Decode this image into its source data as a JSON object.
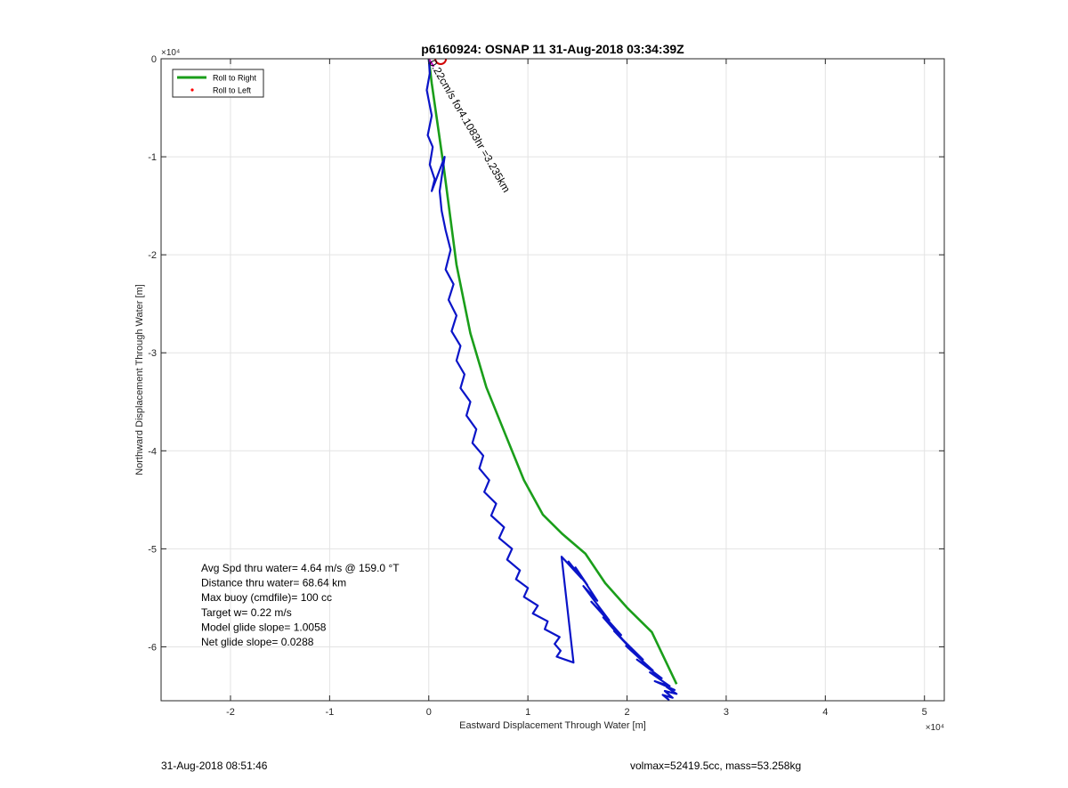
{
  "chart_data": {
    "type": "line",
    "title": "p6160924: OSNAP 11 31-Aug-2018 03:34:39Z",
    "xlabel": "Eastward Displacement Through Water [m]",
    "ylabel": "Northward Displacement Through Water [m]",
    "x_exponent_label": "×10⁴",
    "y_exponent_label": "×10⁴",
    "xlim": [
      -27000,
      52000
    ],
    "ylim": [
      -65500,
      0
    ],
    "x_ticks": [
      -20000,
      -10000,
      0,
      10000,
      20000,
      30000,
      40000,
      50000
    ],
    "x_tick_labels": [
      "-2",
      "-1",
      "0",
      "1",
      "2",
      "3",
      "4",
      "5"
    ],
    "y_ticks": [
      0,
      -10000,
      -20000,
      -30000,
      -40000,
      -50000,
      -60000
    ],
    "y_tick_labels": [
      "0",
      "-1",
      "-2",
      "-3",
      "-4",
      "-5",
      "-6"
    ],
    "grid": true,
    "legend_position": "top-left",
    "legend": [
      {
        "label": "Roll to Right",
        "color": "#1a9e1a",
        "marker": "line"
      },
      {
        "label": "Roll to Left",
        "color": "#ff0000",
        "marker": "dot"
      }
    ],
    "series": [
      {
        "name": "Roll to Right",
        "color": "#1a9e1a",
        "x": [
          0,
          300,
          1500,
          2800,
          4200,
          5800,
          7800,
          9600,
          11500,
          13500,
          15800,
          17800,
          20000,
          22500,
          25000
        ],
        "y": [
          0,
          -2500,
          -11000,
          -21000,
          -28000,
          -33500,
          -38500,
          -43000,
          -46500,
          -48500,
          -50500,
          -53500,
          -56000,
          -58500,
          -63800
        ]
      },
      {
        "color": "#0a14c8",
        "x": [
          0,
          100,
          -200,
          300,
          -100,
          400,
          100,
          600,
          300,
          1600,
          1100,
          1300,
          1700,
          2200,
          1700,
          2500,
          2000,
          2800,
          2300,
          3200,
          2800,
          3600,
          3200,
          4200,
          3800,
          4800,
          4400,
          5500,
          5100,
          6100,
          5600,
          6800,
          6300,
          7600,
          7100,
          8400,
          7900,
          9200,
          8800,
          10000,
          9600,
          11000,
          10500,
          12000,
          11700,
          13200,
          12700,
          13300,
          12900,
          14600,
          13400,
          15400,
          14100,
          16000,
          14800,
          17000,
          15600,
          18200,
          16400,
          19400,
          17600,
          20300,
          18700,
          21600,
          19900,
          22600,
          21000,
          23500,
          22300,
          24300,
          22800,
          24800,
          24000,
          25000,
          23800,
          24600,
          23600,
          24200,
          23800
        ],
        "y": [
          0,
          -1500,
          -3200,
          -5800,
          -7800,
          -9000,
          -10800,
          -12300,
          -13500,
          -10000,
          -13500,
          -15500,
          -17500,
          -19500,
          -21500,
          -23000,
          -24600,
          -26200,
          -27800,
          -29300,
          -30800,
          -32200,
          -33600,
          -35000,
          -36400,
          -37800,
          -39200,
          -40500,
          -41800,
          -43000,
          -44200,
          -45400,
          -46600,
          -47800,
          -48900,
          -50000,
          -51100,
          -52200,
          -53100,
          -54000,
          -54900,
          -55800,
          -56600,
          -57400,
          -58200,
          -59000,
          -59700,
          -60400,
          -61000,
          -61600,
          -50800,
          -53000,
          -51300,
          -53700,
          -51900,
          -55300,
          -53800,
          -57300,
          -55400,
          -58800,
          -57000,
          -60100,
          -58400,
          -61300,
          -59900,
          -62400,
          -61300,
          -63200,
          -62600,
          -64000,
          -63500,
          -64400,
          -64100,
          -64800,
          -64500,
          -65200,
          -64900,
          -65400,
          -65000
        ]
      }
    ],
    "annotation": {
      "text": "0.22cm/s for4.1083hr =3.235km",
      "x": 0,
      "y": 0,
      "rotation_deg": 60
    },
    "start_marker": {
      "x": 1200,
      "y": 0,
      "color": "#d00000"
    },
    "stats_text": [
      "Avg Spd thru water=  4.64 m/s @ 159.0 °T",
      "Distance thru water= 68.64 km",
      "Max buoy (cmdfile)= 100 cc",
      "Target w= 0.22 m/s",
      "Model glide slope= 1.0058",
      "Net glide slope= 0.0288"
    ]
  },
  "footer": {
    "left": "31-Aug-2018 08:51:46",
    "right": "volmax=52419.5cc, mass=53.258kg"
  }
}
